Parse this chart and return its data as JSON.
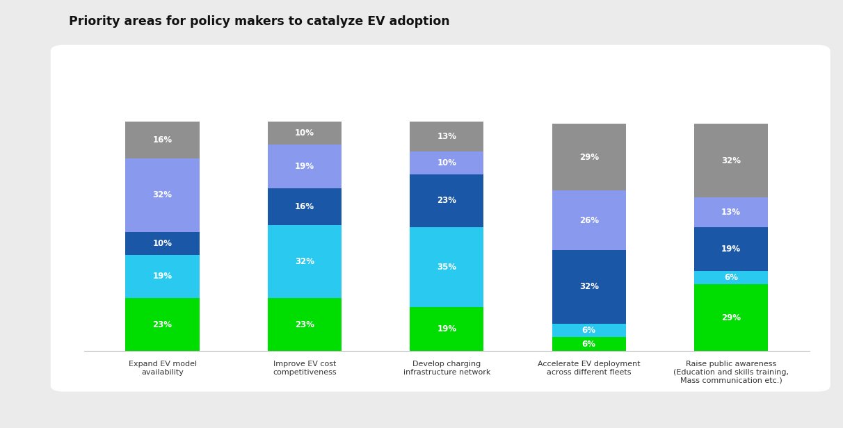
{
  "title": "Priority areas for policy makers to catalyze EV adoption",
  "categories": [
    "Expand EV model\navailability",
    "Improve EV cost\ncompetitiveness",
    "Develop charging\ninfrastructure network",
    "Accelerate EV deployment\nacross different fleets",
    "Raise public awareness\n(Education and skills training,\nMass communication etc.)"
  ],
  "series": {
    "Priority 1": [
      23,
      23,
      19,
      6,
      29
    ],
    "Priority 2": [
      19,
      32,
      35,
      6,
      6
    ],
    "Priority 3": [
      10,
      16,
      23,
      32,
      19
    ],
    "Priority 4": [
      32,
      19,
      10,
      26,
      13
    ],
    "Priority 5": [
      16,
      10,
      13,
      29,
      32
    ]
  },
  "colors": {
    "Priority 1": "#00dd00",
    "Priority 2": "#29c9f0",
    "Priority 3": "#1b57a7",
    "Priority 4": "#8899ee",
    "Priority 5": "#909090"
  },
  "background_outer": "#ebebeb",
  "background_inner": "#ffffff",
  "title_fontsize": 12.5,
  "label_fontsize": 8.5,
  "bar_width": 0.52,
  "legend_fontsize": 9
}
